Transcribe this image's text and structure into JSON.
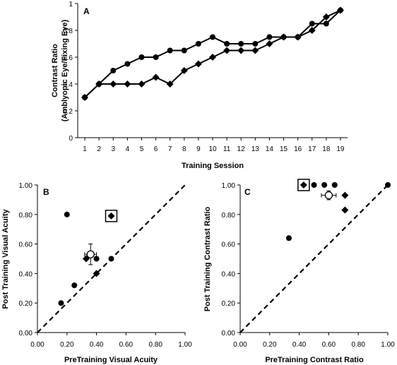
{
  "chart_data": [
    {
      "type": "line",
      "panel_label": "A",
      "ylabel": [
        "Contrast Ratio",
        "(Amblyopic Eye/Fixing Eye)"
      ],
      "xlabel": "Training Session",
      "x": [
        1,
        2,
        3,
        4,
        5,
        6,
        7,
        8,
        9,
        10,
        11,
        12,
        13,
        14,
        15,
        16,
        17,
        18,
        19
      ],
      "xlim": [
        0.5,
        19.5
      ],
      "ylim": [
        0,
        1
      ],
      "yticks": [
        "0",
        "0.2",
        "0.4",
        "0.6",
        "0.8",
        "1"
      ],
      "yticks_values": [
        0,
        0.2,
        0.4,
        0.6,
        0.8,
        1
      ],
      "grid": false,
      "series": [
        {
          "marker": "circle",
          "values": [
            0.3,
            0.4,
            0.5,
            0.55,
            0.6,
            0.6,
            0.65,
            0.65,
            0.7,
            0.75,
            0.7,
            0.7,
            0.7,
            0.75,
            0.75,
            0.75,
            0.85,
            0.85,
            0.95
          ]
        },
        {
          "marker": "diamond",
          "values": [
            0.3,
            0.4,
            0.4,
            0.4,
            0.4,
            0.45,
            0.4,
            0.5,
            0.55,
            0.6,
            0.65,
            0.65,
            0.65,
            0.7,
            0.75,
            0.75,
            0.8,
            0.9,
            0.95
          ]
        }
      ]
    },
    {
      "type": "scatter",
      "panel_label": "B",
      "xlabel": "PreTraining Visual Acuity",
      "ylabel": "Post Training Visual Acuity",
      "xlim": [
        0,
        1
      ],
      "ylim": [
        0,
        1
      ],
      "xticks": [
        "0.00",
        "0.20",
        "0.40",
        "0.60",
        "0.80",
        "1.00"
      ],
      "yticks": [
        "0.00",
        "0.20",
        "0.40",
        "0.60",
        "0.80",
        "1.00"
      ],
      "ticks_values": [
        0,
        0.2,
        0.4,
        0.6,
        0.8,
        1
      ],
      "reference_line": "y = x (dashed)",
      "series": [
        {
          "marker": "circle",
          "points": [
            [
              0.2,
              0.8
            ],
            [
              0.16,
              0.2
            ],
            [
              0.25,
              0.32
            ],
            [
              0.4,
              0.5
            ],
            [
              0.5,
              0.5
            ]
          ]
        },
        {
          "marker": "diamond",
          "points": [
            [
              0.33,
              0.5
            ],
            [
              0.4,
              0.4
            ],
            [
              0.5,
              0.79
            ]
          ]
        },
        {
          "marker": "open-circle-with-cross",
          "points": [
            [
              0.36,
              0.53
            ]
          ],
          "x_error": 0.04,
          "y_error": 0.07
        }
      ],
      "highlighted_point": [
        0.5,
        0.79
      ]
    },
    {
      "type": "scatter",
      "panel_label": "C",
      "xlabel": "PreTraining Contrast Ratio",
      "ylabel": "Post Training Contrast Ratio",
      "xlim": [
        0,
        1
      ],
      "ylim": [
        0,
        1
      ],
      "xticks": [
        "0.00",
        "0.20",
        "0.40",
        "0.60",
        "0.80",
        "1.00"
      ],
      "yticks": [
        "0.00",
        "0.20",
        "0.40",
        "0.60",
        "0.80",
        "1.00"
      ],
      "ticks_values": [
        0,
        0.2,
        0.4,
        0.6,
        0.8,
        1
      ],
      "reference_line": "y = x (dashed)",
      "series": [
        {
          "marker": "circle",
          "points": [
            [
              0.33,
              0.64
            ],
            [
              0.5,
              1.0
            ],
            [
              0.57,
              1.0
            ],
            [
              0.64,
              1.0
            ],
            [
              1.0,
              1.0
            ]
          ]
        },
        {
          "marker": "diamond",
          "points": [
            [
              0.43,
              1.0
            ],
            [
              0.71,
              0.93
            ],
            [
              0.71,
              0.83
            ]
          ]
        },
        {
          "marker": "open-circle-with-cross",
          "points": [
            [
              0.6,
              0.93
            ]
          ],
          "x_error": 0.05,
          "y_error": 0.03
        }
      ],
      "highlighted_point": [
        0.43,
        1.0
      ]
    }
  ]
}
